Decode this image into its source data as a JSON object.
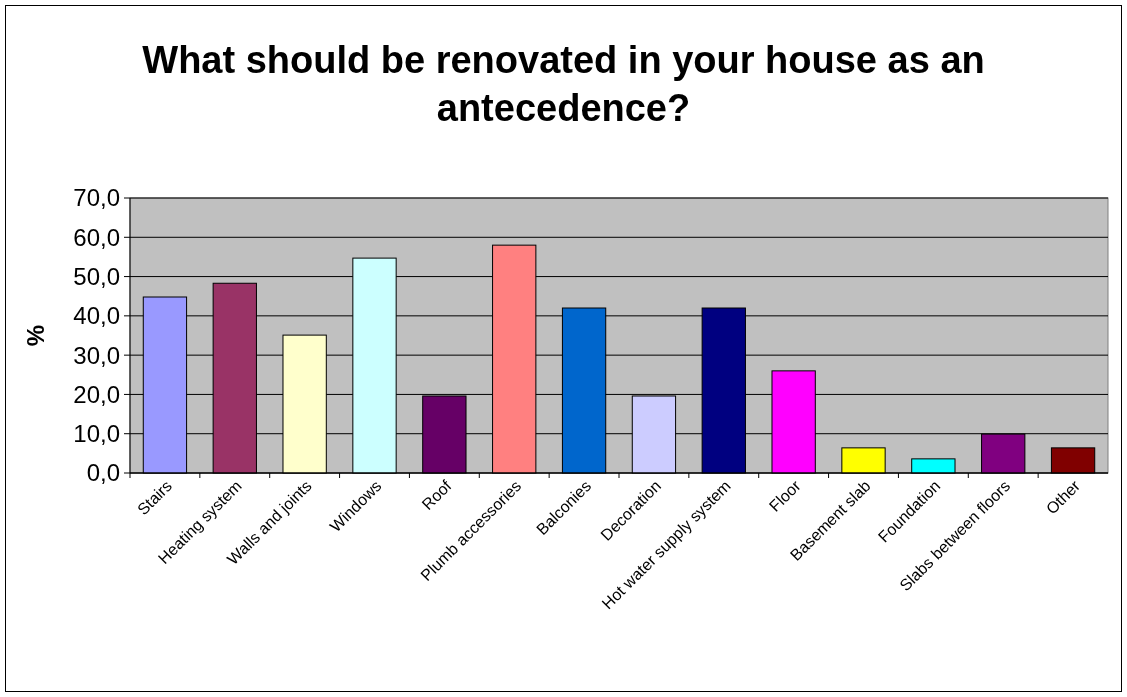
{
  "chart_data": {
    "type": "bar",
    "title": "What should be renovated in your house as an antecedence?",
    "ylabel": "%",
    "categories": [
      "Stairs",
      "Heating system",
      "Walls and joints",
      "Windows",
      "Roof",
      "Plumb accessories",
      "Balconies",
      "Decoration",
      "Hot water supply system",
      "Floor",
      "Basement slab",
      "Foundation",
      "Slabs between floors",
      "Other"
    ],
    "values": [
      44.8,
      48.3,
      35.1,
      54.7,
      19.6,
      58.0,
      42.0,
      19.6,
      42.0,
      26.0,
      6.4,
      3.6,
      9.9,
      6.4
    ],
    "colors": [
      "#9999ff",
      "#993366",
      "#ffffcc",
      "#ccffff",
      "#660066",
      "#ff8080",
      "#0066cc",
      "#ccccff",
      "#000080",
      "#ff00ff",
      "#ffff00",
      "#00ffff",
      "#800080",
      "#800000"
    ],
    "ylim": [
      0,
      70
    ],
    "yticks": [
      {
        "value": 0,
        "label": "0,0"
      },
      {
        "value": 10,
        "label": "10,0"
      },
      {
        "value": 20,
        "label": "20,0"
      },
      {
        "value": 30,
        "label": "30,0"
      },
      {
        "value": 40,
        "label": "40,0"
      },
      {
        "value": 50,
        "label": "50,0"
      },
      {
        "value": 60,
        "label": "60,0"
      },
      {
        "value": 70,
        "label": "70,0"
      }
    ],
    "grid": "y"
  }
}
